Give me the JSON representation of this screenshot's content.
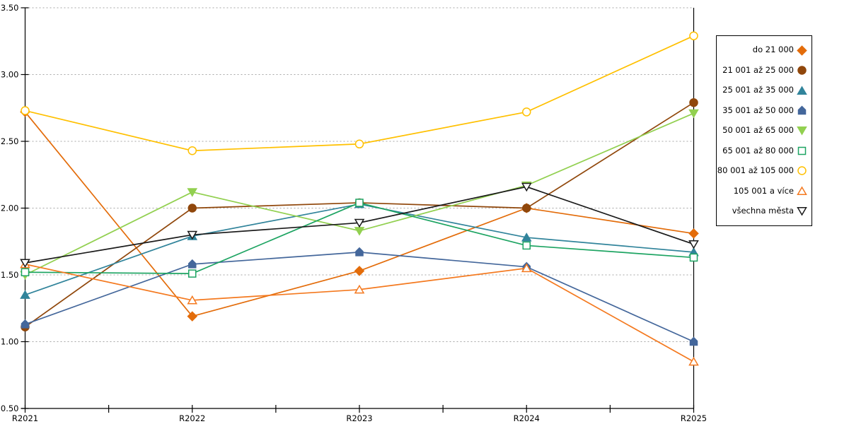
{
  "chart_data": {
    "type": "line",
    "title": "",
    "xlabel": "",
    "ylabel": "",
    "categories": [
      "R2021",
      "R2022",
      "R2023",
      "R2024",
      "R2025"
    ],
    "ylim": [
      0.5,
      3.5
    ],
    "ytick_step": 0.5,
    "ytick_labels": [
      "0.50",
      "1.00",
      "1.50",
      "2.00",
      "2.50",
      "3.00",
      "3.50"
    ],
    "grid": "horizontal-dashed",
    "legend_position": "right-boxed",
    "series": [
      {
        "name": "do 21 000",
        "color": "#E36C0A",
        "marker": "diamond",
        "fill": "solid",
        "values": [
          2.72,
          1.19,
          1.53,
          2.0,
          1.81
        ]
      },
      {
        "name": "21 001 až 25 000",
        "color": "#90470B",
        "marker": "circle",
        "fill": "solid",
        "values": [
          1.11,
          2.0,
          2.04,
          2.0,
          2.79
        ]
      },
      {
        "name": "25 001 až 35 000",
        "color": "#31849B",
        "marker": "triangle-up",
        "fill": "solid",
        "values": [
          1.35,
          1.79,
          2.03,
          1.78,
          1.67
        ]
      },
      {
        "name": "35 001 až 50 000",
        "color": "#44679B",
        "marker": "house",
        "fill": "solid",
        "values": [
          1.13,
          1.58,
          1.67,
          1.56,
          1.0
        ]
      },
      {
        "name": "50 001 až 65 000",
        "color": "#92D050",
        "marker": "triangle-down",
        "fill": "solid",
        "values": [
          1.5,
          2.12,
          1.83,
          2.17,
          2.71
        ]
      },
      {
        "name": "65 001 až 80 000",
        "color": "#1DA462",
        "marker": "square",
        "fill": "open",
        "values": [
          1.52,
          1.51,
          2.04,
          1.72,
          1.63
        ]
      },
      {
        "name": "80 001 až 105 000",
        "color": "#FFC000",
        "marker": "circle",
        "fill": "open",
        "values": [
          2.73,
          2.43,
          2.48,
          2.72,
          3.29
        ]
      },
      {
        "name": "105 001 a více",
        "color": "#F4791F",
        "marker": "triangle-up",
        "fill": "open",
        "values": [
          1.58,
          1.31,
          1.39,
          1.55,
          0.85
        ]
      },
      {
        "name": "všechna města",
        "color": "#1A1A1A",
        "marker": "triangle-down",
        "fill": "open",
        "values": [
          1.59,
          1.8,
          1.89,
          2.16,
          1.73
        ]
      }
    ],
    "axis_color": "#000000",
    "gridline_color": "#A6A6A6"
  }
}
